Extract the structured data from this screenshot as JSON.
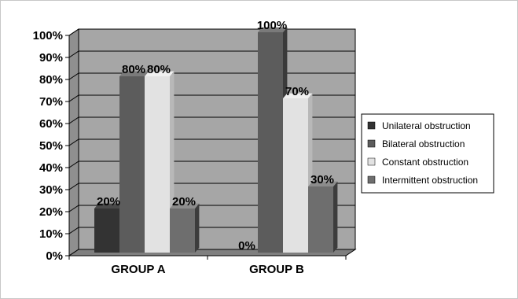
{
  "chart_data": {
    "type": "bar",
    "categories": [
      "GROUP A",
      "GROUP B"
    ],
    "series": [
      {
        "name": "Unilateral obstruction",
        "values": [
          20,
          0
        ],
        "color": "#333333",
        "side": "#1f1f1f",
        "top": "#4a4a4a"
      },
      {
        "name": "Bilateral obstruction",
        "values": [
          80,
          100
        ],
        "color": "#5c5c5c",
        "side": "#3a3a3a",
        "top": "#7a7a7a"
      },
      {
        "name": "Constant obstruction",
        "values": [
          80,
          70
        ],
        "color": "#e2e2e2",
        "side": "#b8b8b8",
        "top": "#f0f0f0"
      },
      {
        "name": "Intermittent obstruction",
        "values": [
          20,
          30
        ],
        "color": "#6e6e6e",
        "side": "#3c3c3c",
        "top": "#8c8c8c"
      }
    ],
    "data_labels": [
      [
        "20%",
        "0%"
      ],
      [
        "80%",
        "100%"
      ],
      [
        "80%",
        "70%"
      ],
      [
        "20%",
        "30%"
      ]
    ],
    "y_ticks": [
      "0%",
      "10%",
      "20%",
      "30%",
      "40%",
      "50%",
      "60%",
      "70%",
      "80%",
      "90%",
      "100%"
    ],
    "ylim": [
      0,
      100
    ],
    "grid": true,
    "legend_position": "right",
    "plot_wall_color": "#a6a6a6",
    "plot_floor_color": "#7f7f7f"
  }
}
